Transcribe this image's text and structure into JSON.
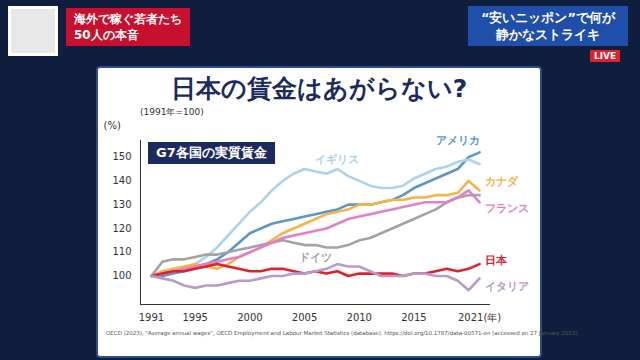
{
  "banners": {
    "left": [
      "海外で稼ぐ若者たち",
      "50人の本音"
    ],
    "right": [
      "“安いニッポン”で何が",
      "静かなストライキ"
    ],
    "live": "LIVE"
  },
  "heading": "日本の賃金はあがらない?",
  "chart_data": {
    "type": "line",
    "title": "G7各国の実質賃金",
    "subtitle": "(1991年=100)",
    "y_label": "(%)",
    "source": "OECD (2023), \"Average annual wages\", OECD Employment and Labour Market Statistics (database). https://doi.org/10.1787/data-00571-en (accessed on 27 January 2023).",
    "x": [
      1991,
      1992,
      1993,
      1994,
      1995,
      1996,
      1997,
      1998,
      1999,
      2000,
      2001,
      2002,
      2003,
      2004,
      2005,
      2006,
      2007,
      2008,
      2009,
      2010,
      2011,
      2012,
      2013,
      2014,
      2015,
      2016,
      2017,
      2018,
      2019,
      2020,
      2021
    ],
    "xlim": [
      1990,
      2022
    ],
    "xticks": [
      1991,
      1995,
      2000,
      2005,
      2010,
      2015,
      {
        "value": 2021,
        "label": "2021(年)"
      }
    ],
    "ylim": [
      88,
      157
    ],
    "yticks": [
      100,
      110,
      120,
      130,
      140,
      150
    ],
    "grid": false,
    "series": [
      {
        "name": "アメリカ",
        "color": "#5b97c9",
        "values": [
          100,
          100,
          101,
          102,
          104,
          105,
          107,
          110,
          114,
          118,
          120,
          122,
          123,
          124,
          125,
          126,
          127,
          128,
          130,
          130,
          130,
          131,
          132,
          134,
          137,
          139,
          141,
          143,
          145,
          150,
          152
        ]
      },
      {
        "name": "イギリス",
        "color": "#a9d3ee",
        "values": [
          100,
          101,
          102,
          103,
          105,
          108,
          112,
          117,
          122,
          127,
          131,
          136,
          140,
          143,
          145,
          144,
          143,
          145,
          142,
          140,
          138,
          137,
          137,
          138,
          141,
          143,
          145,
          146,
          148,
          149,
          147
        ]
      },
      {
        "name": "カナダ",
        "color": "#f4b544",
        "values": [
          100,
          102,
          103,
          104,
          105,
          104,
          103,
          105,
          108,
          110,
          112,
          115,
          118,
          120,
          122,
          124,
          126,
          127,
          128,
          130,
          130,
          131,
          132,
          132,
          133,
          133,
          134,
          134,
          135,
          140,
          136
        ]
      },
      {
        "name": "ドイツ",
        "color": "#a3a3a3",
        "values": [
          100,
          106,
          107,
          107,
          108,
          109,
          109,
          110,
          111,
          112,
          113,
          114,
          115,
          114,
          113,
          113,
          112,
          112,
          113,
          115,
          116,
          118,
          120,
          122,
          124,
          126,
          128,
          131,
          133,
          134,
          134
        ]
      },
      {
        "name": "フランス",
        "color": "#e27fc6",
        "values": [
          100,
          101,
          102,
          103,
          104,
          105,
          106,
          107,
          108,
          110,
          112,
          114,
          116,
          117,
          118,
          119,
          120,
          122,
          124,
          125,
          126,
          127,
          128,
          129,
          130,
          131,
          131,
          131,
          133,
          136,
          131
        ]
      },
      {
        "name": "日本",
        "color": "#e0202a",
        "values": [
          100,
          101,
          102,
          102,
          103,
          104,
          105,
          104,
          103,
          102,
          102,
          103,
          103,
          102,
          101,
          102,
          101,
          102,
          100,
          101,
          101,
          101,
          101,
          100,
          101,
          101,
          102,
          103,
          102,
          103,
          105
        ]
      },
      {
        "name": "イタリア",
        "color": "#b89bc8",
        "values": [
          100,
          99,
          98,
          96,
          95,
          96,
          96,
          97,
          98,
          98,
          99,
          100,
          100,
          101,
          101,
          102,
          103,
          105,
          104,
          104,
          102,
          100,
          100,
          100,
          101,
          101,
          100,
          100,
          98,
          94,
          99
        ]
      }
    ]
  }
}
